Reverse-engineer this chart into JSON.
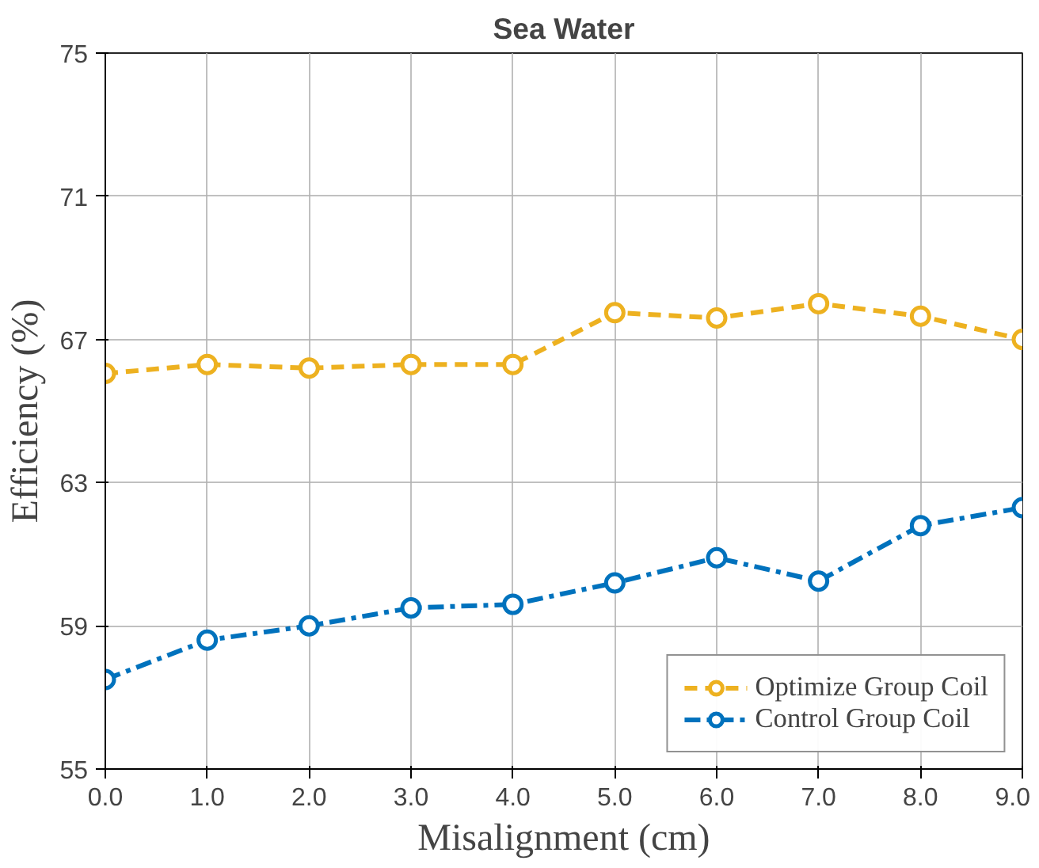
{
  "chart_data": {
    "type": "line",
    "title": "Sea Water",
    "xlabel": "Misalignment (cm)",
    "ylabel": "Efficiency (%)",
    "x": [
      0,
      1,
      2,
      3,
      4,
      5,
      6,
      7,
      8,
      9
    ],
    "xlim": [
      0,
      9
    ],
    "xticks": [
      {
        "value": 0,
        "label": "0.0"
      },
      {
        "value": 1,
        "label": "1.0"
      },
      {
        "value": 2,
        "label": "2.0"
      },
      {
        "value": 3,
        "label": "3.0"
      },
      {
        "value": 4,
        "label": "4.0"
      },
      {
        "value": 5,
        "label": "5.0"
      },
      {
        "value": 6,
        "label": "6.0"
      },
      {
        "value": 7,
        "label": "7.0"
      },
      {
        "value": 8,
        "label": "8.0"
      },
      {
        "value": 9,
        "label": "9.0"
      }
    ],
    "ylim": [
      55,
      75
    ],
    "yticks": [
      55,
      59,
      63,
      67,
      71,
      75
    ],
    "grid": true,
    "legend": "bottom right",
    "marker": "circle",
    "series": [
      {
        "name": "Optimize Group Coil",
        "color": "#edb120",
        "line_style": "dashed",
        "values": [
          66.05,
          66.3,
          66.2,
          66.3,
          66.3,
          67.75,
          67.6,
          68.0,
          67.65,
          67.0
        ]
      },
      {
        "name": "Control Group Coil",
        "color": "#0072bd",
        "line_style": "dashdot",
        "values": [
          57.5,
          58.6,
          59.0,
          59.5,
          59.6,
          60.2,
          60.9,
          60.25,
          61.8,
          62.3
        ]
      }
    ]
  }
}
